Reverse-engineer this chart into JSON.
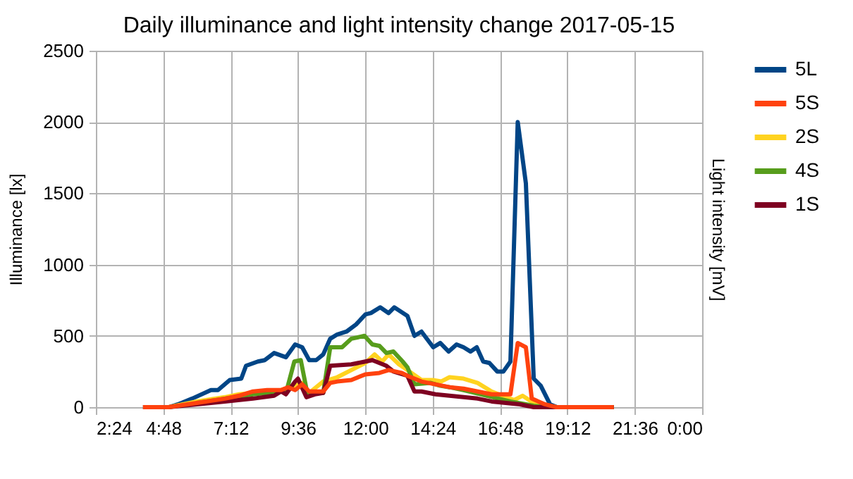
{
  "chart_data": {
    "type": "line",
    "title": "Daily illuminance and light intensity change 2017-05-15",
    "ylabel": "Illuminance [lx]",
    "y2label": "Light intensity [mV]",
    "xlim": [
      2.4,
      24
    ],
    "xticks": [
      {
        "value": 2.4,
        "label": "2:24"
      },
      {
        "value": 4.8,
        "label": "4:48"
      },
      {
        "value": 7.2,
        "label": "7:12"
      },
      {
        "value": 9.6,
        "label": "9:36"
      },
      {
        "value": 12,
        "label": "12:00"
      },
      {
        "value": 14.4,
        "label": "14:24"
      },
      {
        "value": 16.8,
        "label": "16:48"
      },
      {
        "value": 19.2,
        "label": "19:12"
      },
      {
        "value": 21.6,
        "label": "21:36"
      },
      {
        "value": 24,
        "label": "0:00"
      }
    ],
    "ylim": [
      0,
      2500
    ],
    "yticks": [
      0,
      500,
      {
        "value": 1000,
        "label": "1000"
      },
      {
        "value": 1500,
        "label": "1500"
      },
      {
        "value": 2000,
        "label": "2000"
      },
      {
        "value": 2500,
        "label": "2500"
      }
    ],
    "grid": true,
    "legend": "right",
    "series": [
      {
        "name": "5L",
        "color": "#004586",
        "x": [
          4.08,
          5.0,
          5.33,
          5.83,
          6.5,
          6.75,
          7.17,
          7.58,
          7.75,
          8.17,
          8.42,
          8.75,
          9.17,
          9.5,
          9.75,
          10.0,
          10.25,
          10.5,
          10.75,
          11.0,
          11.33,
          11.67,
          12.0,
          12.2,
          12.53,
          12.83,
          13.03,
          13.5,
          13.75,
          14.0,
          14.42,
          14.67,
          14.97,
          15.25,
          15.5,
          15.75,
          15.97,
          16.2,
          16.42,
          16.7,
          16.92,
          17.17,
          17.43,
          17.72,
          18.0,
          18.25,
          18.58,
          18.83,
          20.85
        ],
        "values": [
          0,
          0,
          20,
          60,
          120,
          120,
          190,
          200,
          290,
          320,
          330,
          380,
          350,
          440,
          420,
          330,
          330,
          370,
          480,
          510,
          530,
          580,
          650,
          660,
          700,
          660,
          700,
          640,
          500,
          530,
          420,
          450,
          390,
          440,
          420,
          390,
          420,
          320,
          310,
          250,
          250,
          320,
          2000,
          1570,
          200,
          150,
          20,
          0,
          0
        ]
      },
      {
        "name": "5S",
        "color": "#ff420e",
        "x": [
          4.08,
          5.0,
          6.0,
          7.0,
          7.5,
          8.0,
          8.5,
          9.0,
          9.25,
          9.5,
          9.75,
          10.0,
          10.5,
          10.75,
          11.0,
          11.5,
          12.0,
          12.5,
          12.83,
          13.3,
          13.5,
          14.0,
          14.5,
          15.0,
          15.5,
          16.0,
          16.5,
          17.17,
          17.43,
          17.72,
          17.93,
          18.4,
          18.8,
          20.85
        ],
        "values": [
          0,
          0,
          30,
          60,
          80,
          110,
          120,
          120,
          140,
          120,
          160,
          110,
          110,
          170,
          180,
          190,
          230,
          240,
          260,
          240,
          220,
          180,
          160,
          140,
          130,
          110,
          90,
          90,
          450,
          420,
          60,
          20,
          0,
          0
        ]
      },
      {
        "name": "2S",
        "color": "#ffd320",
        "x": [
          4.08,
          5.0,
          6.0,
          7.0,
          7.5,
          8.0,
          8.5,
          9.0,
          9.5,
          9.75,
          10.0,
          10.5,
          11.0,
          11.5,
          12.0,
          12.33,
          12.6,
          12.83,
          13.2,
          13.5,
          14.0,
          14.4,
          14.7,
          15.0,
          15.5,
          16.0,
          16.5,
          17.0,
          17.3,
          17.6,
          18.0,
          18.5,
          18.8,
          20.85
        ],
        "values": [
          0,
          0,
          40,
          70,
          90,
          100,
          110,
          120,
          150,
          170,
          100,
          180,
          210,
          260,
          310,
          370,
          320,
          370,
          300,
          260,
          190,
          190,
          180,
          210,
          200,
          170,
          110,
          70,
          50,
          80,
          30,
          10,
          0,
          0
        ]
      },
      {
        "name": "4S",
        "color": "#579d1c",
        "x": [
          6.0,
          7.0,
          8.0,
          9.0,
          9.2,
          9.47,
          9.7,
          9.93,
          10.5,
          10.75,
          11.17,
          11.5,
          11.97,
          12.25,
          12.5,
          12.75,
          13.0,
          13.33,
          13.5,
          13.75,
          14.33,
          14.67,
          15.0,
          15.5,
          16.33,
          17.17,
          18.0,
          18.5,
          20.85
        ],
        "values": [
          30,
          60,
          90,
          110,
          120,
          320,
          330,
          100,
          100,
          420,
          420,
          480,
          500,
          440,
          430,
          380,
          390,
          320,
          280,
          160,
          170,
          150,
          140,
          120,
          80,
          40,
          10,
          0,
          0
        ]
      },
      {
        "name": "1S",
        "color": "#7e0021",
        "x": [
          4.08,
          5.0,
          6.0,
          7.0,
          8.0,
          8.75,
          9.0,
          9.17,
          9.5,
          9.6,
          9.9,
          10.2,
          10.5,
          10.75,
          11.5,
          12.0,
          12.25,
          12.75,
          13.0,
          13.5,
          13.75,
          14.0,
          14.5,
          15.0,
          15.5,
          16.0,
          16.5,
          17.0,
          17.5,
          18.0,
          20.85
        ],
        "values": [
          0,
          0,
          20,
          40,
          60,
          80,
          110,
          90,
          180,
          200,
          70,
          90,
          100,
          290,
          300,
          320,
          330,
          290,
          250,
          220,
          110,
          110,
          90,
          80,
          70,
          60,
          40,
          30,
          20,
          0,
          0
        ]
      }
    ]
  }
}
